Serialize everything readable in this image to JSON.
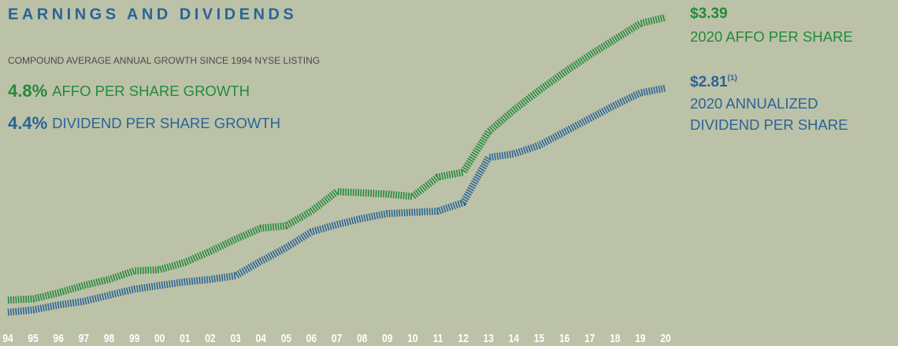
{
  "chart_data": {
    "type": "line",
    "title": "EARNINGS AND DIVIDENDS",
    "subtitle": "COMPOUND AVERAGE ANNUAL GROWTH SINCE 1994 NYSE LISTING",
    "annotations": [
      {
        "value": "4.8%",
        "text": "AFFO PER SHARE GROWTH",
        "color": "#238a3c"
      },
      {
        "value": "4.4%",
        "text": "DIVIDEND PER SHARE GROWTH",
        "color": "#2a6496"
      }
    ],
    "end_labels": [
      {
        "lines": [
          "2020 AFFO PER SHARE"
        ]
      },
      {
        "footnote": "(1)",
        "lines": [
          "2020 ANNUALIZED",
          "DIVIDEND PER SHARE"
        ]
      }
    ],
    "categories": [
      "94",
      "95",
      "96",
      "97",
      "98",
      "99",
      "00",
      "01",
      "02",
      "03",
      "04",
      "05",
      "06",
      "07",
      "08",
      "09",
      "10",
      "11",
      "12",
      "13",
      "14",
      "15",
      "16",
      "17",
      "18",
      "19",
      "20"
    ],
    "series": [
      {
        "color": "#238a3c",
        "values": [
          1.07,
          1.08,
          1.13,
          1.19,
          1.24,
          1.31,
          1.32,
          1.38,
          1.47,
          1.57,
          1.66,
          1.68,
          1.8,
          1.96,
          1.95,
          1.94,
          1.92,
          2.08,
          2.12,
          2.45,
          2.63,
          2.79,
          2.94,
          3.08,
          3.21,
          3.34,
          3.39
        ],
        "value_labels": [
          null,
          null,
          null,
          null,
          null,
          null,
          null,
          null,
          null,
          null,
          null,
          null,
          null,
          null,
          null,
          null,
          null,
          null,
          null,
          null,
          null,
          null,
          null,
          null,
          null,
          null,
          "$3.39"
        ]
      },
      {
        "color": "#2a6496",
        "values": [
          0.97,
          0.99,
          1.03,
          1.06,
          1.11,
          1.16,
          1.19,
          1.22,
          1.24,
          1.27,
          1.39,
          1.5,
          1.63,
          1.69,
          1.74,
          1.78,
          1.79,
          1.8,
          1.87,
          2.24,
          2.27,
          2.34,
          2.45,
          2.56,
          2.67,
          2.77,
          2.81
        ],
        "value_labels": [
          null,
          null,
          null,
          null,
          null,
          null,
          null,
          null,
          null,
          null,
          null,
          null,
          null,
          null,
          null,
          null,
          null,
          null,
          null,
          null,
          null,
          null,
          null,
          null,
          null,
          null,
          "$2.81"
        ]
      }
    ],
    "ylim": [
      0.9,
      3.4
    ]
  }
}
